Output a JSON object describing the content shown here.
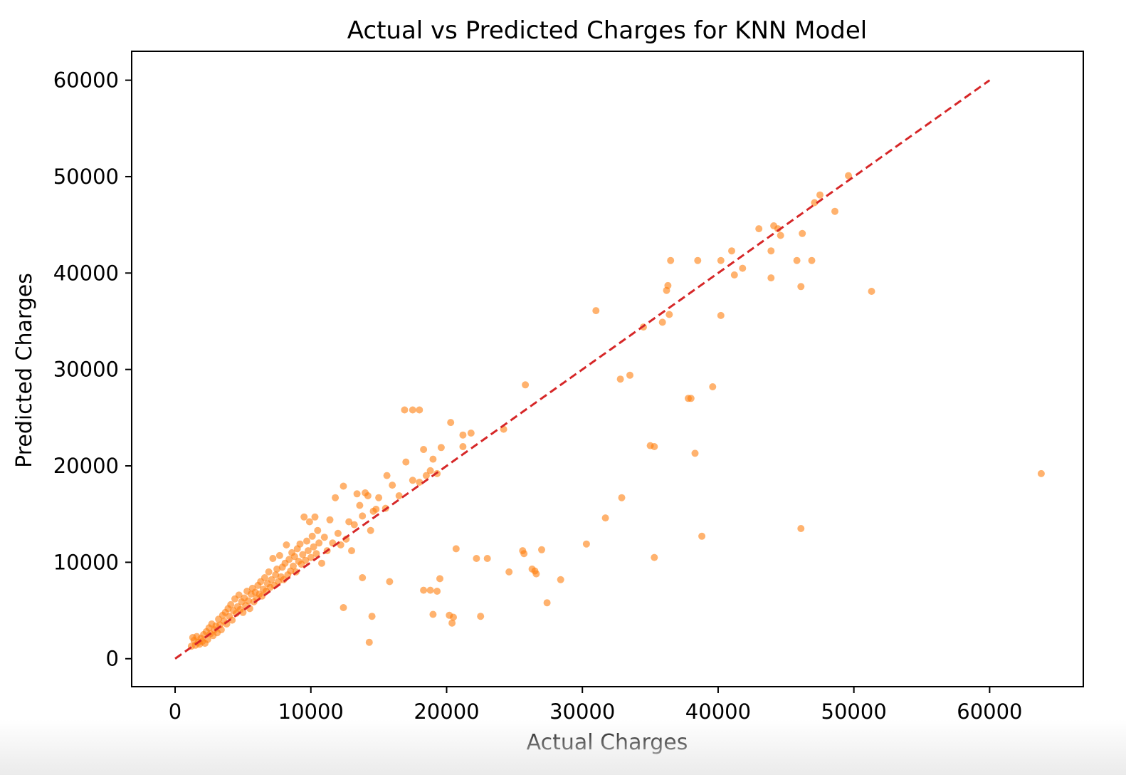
{
  "chart_data": {
    "type": "scatter",
    "title": "Actual vs Predicted Charges for KNN Model",
    "xlabel": "Actual Charges",
    "ylabel": "Predicted Charges",
    "xlim": [
      -3200,
      66900
    ],
    "ylim": [
      -2900,
      63000
    ],
    "xticks": [
      0,
      10000,
      20000,
      30000,
      40000,
      50000,
      60000
    ],
    "yticks": [
      0,
      10000,
      20000,
      30000,
      40000,
      50000,
      60000
    ],
    "xtick_labels": [
      "0",
      "10000",
      "20000",
      "30000",
      "40000",
      "50000",
      "60000"
    ],
    "ytick_labels": [
      "0",
      "10000",
      "20000",
      "30000",
      "40000",
      "50000",
      "60000"
    ],
    "grid": false,
    "marker_color": "#ff7f0e",
    "reference_line": {
      "style": "dashed",
      "color": "#d62728",
      "from": [
        0,
        0
      ],
      "to": [
        60000,
        60000
      ]
    },
    "points": [
      [
        1200,
        1300
      ],
      [
        1300,
        2200
      ],
      [
        1400,
        1900
      ],
      [
        1500,
        1400
      ],
      [
        1600,
        2300
      ],
      [
        1700,
        1700
      ],
      [
        1800,
        1500
      ],
      [
        1900,
        2100
      ],
      [
        2000,
        1800
      ],
      [
        2100,
        2500
      ],
      [
        2200,
        1600
      ],
      [
        2300,
        2800
      ],
      [
        2400,
        2000
      ],
      [
        2500,
        3200
      ],
      [
        2600,
        2600
      ],
      [
        2700,
        3600
      ],
      [
        2800,
        2400
      ],
      [
        2900,
        3000
      ],
      [
        3000,
        3400
      ],
      [
        3100,
        2700
      ],
      [
        3200,
        4100
      ],
      [
        3300,
        3500
      ],
      [
        3400,
        3000
      ],
      [
        3500,
        4500
      ],
      [
        3600,
        3900
      ],
      [
        3700,
        4800
      ],
      [
        3800,
        3600
      ],
      [
        3900,
        5200
      ],
      [
        4000,
        4400
      ],
      [
        4100,
        5600
      ],
      [
        4200,
        4000
      ],
      [
        4300,
        5000
      ],
      [
        4400,
        6200
      ],
      [
        4500,
        4700
      ],
      [
        4600,
        5400
      ],
      [
        4700,
        6600
      ],
      [
        4800,
        5100
      ],
      [
        4900,
        5900
      ],
      [
        5000,
        4800
      ],
      [
        5100,
        6300
      ],
      [
        5200,
        5500
      ],
      [
        5300,
        7000
      ],
      [
        5400,
        6000
      ],
      [
        5500,
        5200
      ],
      [
        5600,
        6700
      ],
      [
        5700,
        7300
      ],
      [
        5800,
        5900
      ],
      [
        5900,
        6900
      ],
      [
        6000,
        6300
      ],
      [
        6100,
        7600
      ],
      [
        6200,
        6700
      ],
      [
        6300,
        8000
      ],
      [
        6400,
        6500
      ],
      [
        6500,
        7200
      ],
      [
        6600,
        8400
      ],
      [
        6700,
        7000
      ],
      [
        6800,
        7800
      ],
      [
        6900,
        9000
      ],
      [
        7000,
        7400
      ],
      [
        7100,
        8200
      ],
      [
        7200,
        10400
      ],
      [
        7300,
        7600
      ],
      [
        7400,
        8700
      ],
      [
        7500,
        9300
      ],
      [
        7600,
        8000
      ],
      [
        7700,
        10700
      ],
      [
        7800,
        8500
      ],
      [
        7900,
        9500
      ],
      [
        8000,
        8200
      ],
      [
        8100,
        9900
      ],
      [
        8200,
        11800
      ],
      [
        8300,
        8700
      ],
      [
        8400,
        10300
      ],
      [
        8500,
        9100
      ],
      [
        8600,
        11000
      ],
      [
        8700,
        9600
      ],
      [
        8800,
        10600
      ],
      [
        8900,
        9000
      ],
      [
        9000,
        11400
      ],
      [
        9100,
        10100
      ],
      [
        9200,
        11900
      ],
      [
        9300,
        9800
      ],
      [
        9400,
        10800
      ],
      [
        9500,
        14700
      ],
      [
        9600,
        10200
      ],
      [
        9700,
        12200
      ],
      [
        9800,
        11200
      ],
      [
        9900,
        14200
      ],
      [
        10000,
        10500
      ],
      [
        10100,
        12700
      ],
      [
        10200,
        11600
      ],
      [
        10300,
        14700
      ],
      [
        10400,
        10900
      ],
      [
        10500,
        13300
      ],
      [
        10600,
        12000
      ],
      [
        10800,
        9900
      ],
      [
        11000,
        12600
      ],
      [
        11200,
        11200
      ],
      [
        11400,
        14400
      ],
      [
        11600,
        12000
      ],
      [
        11800,
        16700
      ],
      [
        12000,
        13000
      ],
      [
        12200,
        11800
      ],
      [
        12400,
        17900
      ],
      [
        12600,
        12400
      ],
      [
        12800,
        14200
      ],
      [
        13000,
        11200
      ],
      [
        13200,
        13900
      ],
      [
        13400,
        17100
      ],
      [
        13600,
        15900
      ],
      [
        13800,
        14800
      ],
      [
        14000,
        17200
      ],
      [
        14200,
        16900
      ],
      [
        14400,
        13300
      ],
      [
        14600,
        15300
      ],
      [
        14800,
        15500
      ],
      [
        15000,
        16700
      ],
      [
        15500,
        15600
      ],
      [
        15600,
        19000
      ],
      [
        16000,
        18000
      ],
      [
        16500,
        16900
      ],
      [
        17000,
        20400
      ],
      [
        17500,
        18500
      ],
      [
        18000,
        18300
      ],
      [
        18300,
        21700
      ],
      [
        18500,
        19000
      ],
      [
        18800,
        19500
      ],
      [
        19000,
        20700
      ],
      [
        19300,
        19200
      ],
      [
        19600,
        21900
      ],
      [
        16900,
        25800
      ],
      [
        17500,
        25800
      ],
      [
        18000,
        25800
      ],
      [
        20300,
        24500
      ],
      [
        21200,
        23200
      ],
      [
        21200,
        22000
      ],
      [
        21800,
        23400
      ],
      [
        24200,
        23800
      ],
      [
        25800,
        28400
      ],
      [
        31000,
        36100
      ],
      [
        32800,
        29000
      ],
      [
        33500,
        29400
      ],
      [
        34500,
        34400
      ],
      [
        35900,
        34900
      ],
      [
        36200,
        38200
      ],
      [
        36300,
        38700
      ],
      [
        36400,
        35700
      ],
      [
        36500,
        41300
      ],
      [
        38500,
        41300
      ],
      [
        40200,
        41300
      ],
      [
        41000,
        42300
      ],
      [
        41200,
        39800
      ],
      [
        41800,
        40500
      ],
      [
        43000,
        44600
      ],
      [
        43900,
        42300
      ],
      [
        44100,
        44900
      ],
      [
        44400,
        44600
      ],
      [
        44600,
        43900
      ],
      [
        45800,
        41300
      ],
      [
        46200,
        44100
      ],
      [
        46900,
        41300
      ],
      [
        47100,
        47300
      ],
      [
        47500,
        48100
      ],
      [
        48600,
        46400
      ],
      [
        49600,
        50100
      ],
      [
        43900,
        39500
      ],
      [
        46100,
        38600
      ],
      [
        51300,
        38100
      ],
      [
        40200,
        35600
      ],
      [
        39600,
        28200
      ],
      [
        37800,
        27000
      ],
      [
        38000,
        27000
      ],
      [
        35000,
        22100
      ],
      [
        35300,
        22000
      ],
      [
        38300,
        21300
      ],
      [
        32900,
        16700
      ],
      [
        31700,
        14600
      ],
      [
        30300,
        11900
      ],
      [
        38800,
        12700
      ],
      [
        35300,
        10500
      ],
      [
        46100,
        13500
      ],
      [
        63800,
        19200
      ],
      [
        13800,
        8400
      ],
      [
        15800,
        8000
      ],
      [
        12400,
        5300
      ],
      [
        14300,
        1700
      ],
      [
        14500,
        4400
      ],
      [
        18300,
        7100
      ],
      [
        18800,
        7100
      ],
      [
        19300,
        7000
      ],
      [
        19500,
        8300
      ],
      [
        19000,
        4600
      ],
      [
        20200,
        4500
      ],
      [
        20400,
        3700
      ],
      [
        20500,
        4300
      ],
      [
        22500,
        4400
      ],
      [
        20700,
        11400
      ],
      [
        22200,
        10400
      ],
      [
        23000,
        10400
      ],
      [
        24600,
        9000
      ],
      [
        25600,
        11200
      ],
      [
        25700,
        10900
      ],
      [
        26300,
        9300
      ],
      [
        26500,
        9100
      ],
      [
        26600,
        8800
      ],
      [
        27000,
        11300
      ],
      [
        27400,
        5800
      ],
      [
        28400,
        8200
      ]
    ]
  }
}
